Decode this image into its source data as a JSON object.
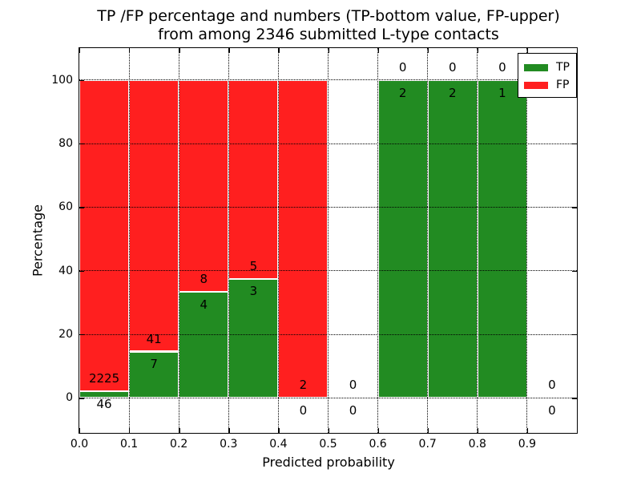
{
  "title": {
    "line1": "TP /FP percentage and numbers (TP-bottom value, FP-upper)",
    "line2": "from among 2346 submitted L-type contacts"
  },
  "axes": {
    "xlabel": "Predicted probability",
    "ylabel": "Percentage",
    "x_tick_labels": [
      "0.0",
      "0.1",
      "0.2",
      "0.3",
      "0.4",
      "0.5",
      "0.6",
      "0.7",
      "0.8",
      "0.9"
    ],
    "x_tick_values": [
      0.0,
      0.1,
      0.2,
      0.3,
      0.4,
      0.5,
      0.6,
      0.7,
      0.8,
      0.9
    ],
    "y_tick_labels": [
      "0",
      "20",
      "40",
      "60",
      "80",
      "100"
    ],
    "y_tick_values": [
      0,
      20,
      40,
      60,
      80,
      100
    ],
    "grid_style": "dotted"
  },
  "legend": {
    "position": "upper right",
    "entries": [
      {
        "label": "TP",
        "color": "#228b22"
      },
      {
        "label": "FP",
        "color": "#ff1f1f"
      }
    ]
  },
  "colors": {
    "tp_green": "#228b22",
    "fp_red": "#ff1f1f",
    "bar_edge": "#ffffff",
    "grid": "#000000",
    "frame": "#000000",
    "background": "#ffffff",
    "text": "#000000"
  },
  "chart_data": {
    "type": "bar",
    "stacked": true,
    "normalized_to_percent": true,
    "title": "TP /FP percentage and numbers (TP-bottom value, FP-upper) from among 2346 submitted L-type contacts",
    "xlabel": "Predicted probability",
    "ylabel": "Percentage",
    "xlim": [
      0.0,
      1.0
    ],
    "ylim": [
      -11,
      110
    ],
    "grid": true,
    "legend_position": "upper right",
    "bin_edges": [
      0.0,
      0.1,
      0.2,
      0.3,
      0.4,
      0.5,
      0.6,
      0.7,
      0.8,
      0.9,
      1.0
    ],
    "series": [
      {
        "name": "TP",
        "color": "#228b22",
        "counts": [
          46,
          7,
          4,
          3,
          0,
          0,
          2,
          2,
          1,
          0
        ]
      },
      {
        "name": "FP",
        "color": "#ff1f1f",
        "counts": [
          2225,
          41,
          8,
          5,
          2,
          0,
          0,
          0,
          0,
          0
        ]
      }
    ],
    "tp_percent_heights": [
      2.03,
      14.58,
      33.33,
      37.5,
      0.0,
      null,
      100.0,
      100.0,
      100.0,
      null
    ],
    "fp_percent_heights": [
      97.97,
      85.42,
      66.67,
      62.5,
      100.0,
      null,
      0.0,
      0.0,
      0.0,
      null
    ],
    "total_contacts": 2346
  }
}
